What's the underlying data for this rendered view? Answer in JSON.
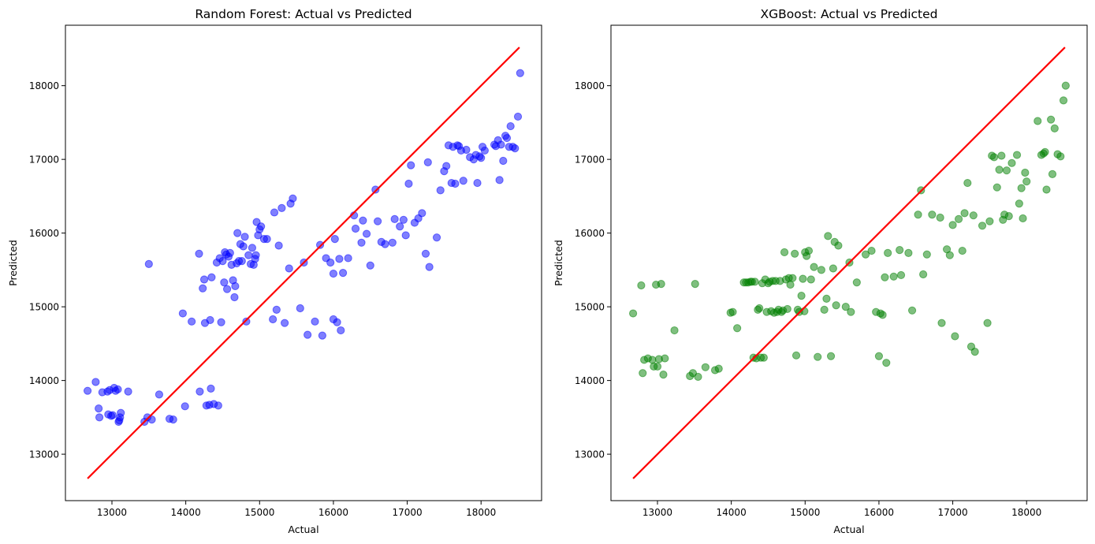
{
  "chart_data": [
    {
      "type": "scatter",
      "title": "Random Forest: Actual vs Predicted",
      "xlabel": "Actual",
      "ylabel": "Predicted",
      "xlim": [
        12370,
        18820
      ],
      "ylim": [
        12370,
        18820
      ],
      "xticks": [
        13000,
        14000,
        15000,
        16000,
        17000,
        18000
      ],
      "yticks": [
        13000,
        14000,
        15000,
        16000,
        17000,
        18000
      ],
      "grid": false,
      "point_color": "#0000ff",
      "point_opacity": 0.5,
      "reference_line": {
        "color": "#ff0000",
        "x": [
          12670,
          18520
        ],
        "y": [
          12670,
          18520
        ]
      },
      "x": [
        12670,
        12780,
        12820,
        12830,
        12870,
        12940,
        12950,
        12970,
        12990,
        13010,
        13030,
        13050,
        13080,
        13090,
        13100,
        13110,
        13120,
        13220,
        13440,
        13480,
        13500,
        13540,
        13640,
        13780,
        13830,
        13990,
        13960,
        14080,
        14180,
        14190,
        14230,
        14250,
        14260,
        14280,
        14320,
        14330,
        14340,
        14350,
        14380,
        14420,
        14440,
        14460,
        14480,
        14500,
        14520,
        14530,
        14550,
        14560,
        14580,
        14600,
        14620,
        14640,
        14660,
        14670,
        14690,
        14700,
        14720,
        14740,
        14760,
        14780,
        14800,
        14820,
        14850,
        14880,
        14900,
        14920,
        14940,
        14950,
        14960,
        14980,
        15000,
        15020,
        15060,
        15100,
        15180,
        15200,
        15230,
        15260,
        15300,
        15340,
        15400,
        15420,
        15450,
        15550,
        15600,
        15650,
        15750,
        15820,
        15850,
        15900,
        15960,
        16000,
        16000,
        16020,
        16050,
        16080,
        16100,
        16130,
        16200,
        16280,
        16300,
        16380,
        16400,
        16450,
        16500,
        16570,
        16600,
        16650,
        16700,
        16800,
        16830,
        16900,
        16950,
        16980,
        17020,
        17050,
        17100,
        17150,
        17200,
        17250,
        17280,
        17300,
        17400,
        17450,
        17500,
        17530,
        17560,
        17600,
        17620,
        17650,
        17680,
        17700,
        17730,
        17760,
        17800,
        17850,
        17900,
        17930,
        17950,
        17980,
        18000,
        18020,
        18050,
        18180,
        18200,
        18230,
        18250,
        18270,
        18300,
        18330,
        18350,
        18380,
        18400,
        18430,
        18460,
        18500,
        18530
      ],
      "y": [
        13860,
        13980,
        13620,
        13500,
        13840,
        13850,
        13540,
        13870,
        13520,
        13530,
        13900,
        13860,
        13880,
        13440,
        13460,
        13500,
        13560,
        13850,
        13440,
        13500,
        15580,
        13470,
        13810,
        13480,
        13470,
        13650,
        14910,
        14800,
        15720,
        13850,
        15250,
        15370,
        14780,
        13660,
        13670,
        14820,
        13890,
        15400,
        13680,
        15600,
        13660,
        15660,
        14790,
        15620,
        15330,
        15740,
        15710,
        15240,
        15680,
        15730,
        15570,
        15360,
        15130,
        15280,
        15590,
        16000,
        15620,
        15850,
        15620,
        15820,
        15950,
        14800,
        15700,
        15580,
        15800,
        15570,
        15650,
        15700,
        16150,
        15970,
        16050,
        16090,
        15920,
        15920,
        14830,
        16280,
        14960,
        15830,
        16340,
        14780,
        15520,
        16400,
        16470,
        14980,
        15600,
        14620,
        14800,
        15840,
        14610,
        15660,
        15600,
        14830,
        15450,
        15920,
        14790,
        15650,
        14680,
        15460,
        15660,
        16240,
        16060,
        15870,
        16170,
        15990,
        15560,
        16590,
        16160,
        15880,
        15850,
        15870,
        16190,
        16090,
        16180,
        15970,
        16670,
        16920,
        16140,
        16200,
        16270,
        15720,
        16960,
        15540,
        15940,
        16580,
        16840,
        16910,
        17190,
        16680,
        17170,
        16670,
        17190,
        17180,
        17120,
        16710,
        17130,
        17030,
        17000,
        17060,
        16680,
        17040,
        17020,
        17170,
        17120,
        17200,
        17180,
        17260,
        16720,
        17200,
        16980,
        17320,
        17290,
        17170,
        17450,
        17170,
        17150,
        17580,
        18170
      ]
    },
    {
      "type": "scatter",
      "title": "XGBoost: Actual vs Predicted",
      "xlabel": "Actual",
      "ylabel": "Predicted",
      "xlim": [
        12370,
        18820
      ],
      "ylim": [
        12370,
        18820
      ],
      "xticks": [
        13000,
        14000,
        15000,
        16000,
        17000,
        18000
      ],
      "yticks": [
        13000,
        14000,
        15000,
        16000,
        17000,
        18000
      ],
      "grid": false,
      "point_color": "#008000",
      "point_opacity": 0.5,
      "reference_line": {
        "color": "#ff0000",
        "x": [
          12670,
          18520
        ],
        "y": [
          12670,
          18520
        ]
      },
      "x": [
        12670,
        12780,
        12800,
        12820,
        12870,
        12930,
        12950,
        12980,
        13000,
        13020,
        13050,
        13080,
        13100,
        13230,
        13440,
        13480,
        13510,
        13550,
        13650,
        13780,
        13830,
        13990,
        14020,
        14080,
        14170,
        14200,
        14230,
        14260,
        14280,
        14300,
        14320,
        14340,
        14360,
        14380,
        14400,
        14420,
        14440,
        14460,
        14480,
        14500,
        14520,
        14540,
        14560,
        14580,
        14600,
        14620,
        14640,
        14660,
        14680,
        14700,
        14720,
        14740,
        14760,
        14780,
        14800,
        14830,
        14860,
        14880,
        14900,
        14920,
        14950,
        14970,
        14990,
        15000,
        15020,
        15050,
        15080,
        15120,
        15170,
        15220,
        15260,
        15290,
        15310,
        15350,
        15380,
        15400,
        15420,
        15450,
        15550,
        15600,
        15620,
        15700,
        15820,
        15900,
        15960,
        16000,
        16020,
        16050,
        16080,
        16100,
        16120,
        16200,
        16280,
        16300,
        16400,
        16450,
        16530,
        16570,
        16600,
        16650,
        16720,
        16830,
        16850,
        16920,
        16960,
        17000,
        17030,
        17080,
        17130,
        17160,
        17200,
        17250,
        17280,
        17300,
        17400,
        17470,
        17500,
        17530,
        17560,
        17600,
        17630,
        17660,
        17680,
        17700,
        17730,
        17760,
        17800,
        17870,
        17900,
        17930,
        17950,
        17980,
        18000,
        18150,
        18200,
        18230,
        18250,
        18270,
        18330,
        18350,
        18380,
        18420,
        18460,
        18500,
        18530
      ],
      "y": [
        14910,
        15290,
        14100,
        14280,
        14300,
        14280,
        14190,
        15300,
        14190,
        14290,
        15310,
        14080,
        14300,
        14680,
        14060,
        14100,
        15310,
        14050,
        14180,
        14140,
        14160,
        14920,
        14930,
        14710,
        15330,
        15330,
        15330,
        15340,
        15340,
        14310,
        15340,
        14300,
        14960,
        14980,
        14310,
        15320,
        14310,
        15370,
        14930,
        15320,
        15340,
        14940,
        15350,
        14920,
        15350,
        14930,
        14960,
        15350,
        14930,
        14950,
        15740,
        15370,
        14970,
        15390,
        15300,
        15390,
        15720,
        14340,
        14960,
        14930,
        15150,
        15380,
        14940,
        15740,
        15690,
        15760,
        15370,
        15540,
        14320,
        15500,
        14960,
        15110,
        15960,
        14330,
        15520,
        15880,
        15020,
        15830,
        15000,
        15600,
        14930,
        15330,
        15710,
        15760,
        14930,
        14330,
        14910,
        14890,
        15400,
        14240,
        15730,
        15410,
        15770,
        15430,
        15730,
        14950,
        16250,
        16580,
        15440,
        15710,
        16250,
        16210,
        14780,
        15780,
        15700,
        16110,
        14600,
        16190,
        15760,
        16270,
        16680,
        14460,
        16240,
        14390,
        16100,
        14780,
        16160,
        17050,
        17030,
        16620,
        16860,
        17050,
        16180,
        16250,
        16850,
        16230,
        16950,
        17060,
        16400,
        16610,
        16200,
        16820,
        16700,
        17520,
        17060,
        17080,
        17100,
        16590,
        17540,
        16800,
        17420,
        17070,
        17040,
        17800,
        18000
      ]
    }
  ]
}
